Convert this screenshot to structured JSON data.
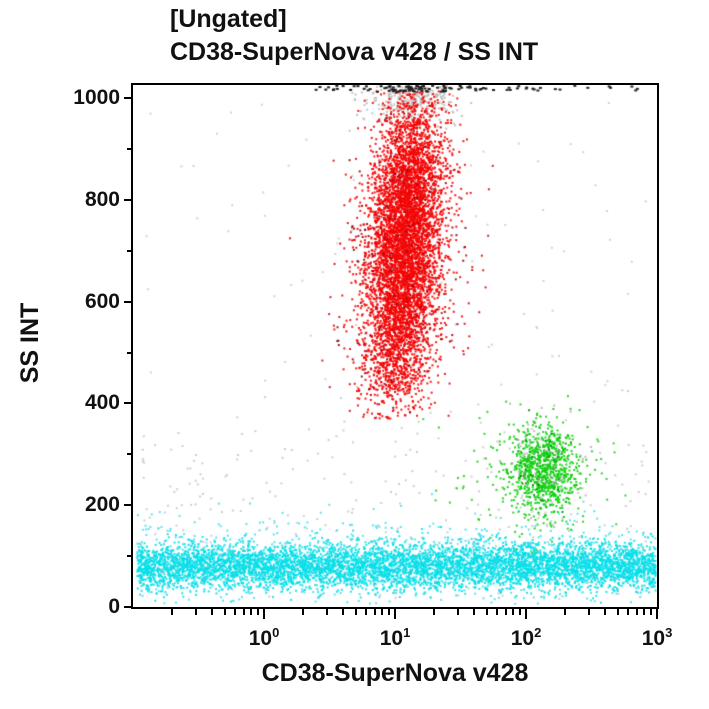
{
  "title": {
    "line1": "[Ungated]",
    "line2": "CD38-SuperNova v428 / SS INT"
  },
  "colors": {
    "background": "#ffffff",
    "axis": "#000000",
    "text": "#111111",
    "granulocytes": "#f50505",
    "monocytes": "#0bd10b",
    "lymphocytes": "#00e1ea",
    "debris": "#c9c9c9",
    "saturated": "#1e1e1e"
  },
  "chart_data": {
    "type": "scatter",
    "subtype": "flow-cytometry-dot-plot",
    "title": "[Ungated]",
    "subtitle": "CD38-SuperNova v428 / SS INT",
    "grid": false,
    "legend": false,
    "x_axis": {
      "label": "CD38-SuperNova v428",
      "scale": "log",
      "range": [
        0.1,
        1000
      ],
      "base": "10",
      "major_tick_exponents": [
        0,
        1,
        2,
        3
      ],
      "minor_tick_multipliers": [
        2,
        3,
        4,
        5,
        6,
        7,
        8,
        9
      ]
    },
    "y_axis": {
      "label": "SS INT",
      "scale": "linear",
      "range": [
        0,
        1025
      ],
      "major_ticks": [
        0,
        200,
        400,
        600,
        800,
        1000
      ],
      "minor_ticks": [
        100,
        300,
        500,
        700,
        900
      ]
    },
    "populations": [
      {
        "name": "debris-gray-low",
        "color": "#c9c9c9",
        "alpha": 0.9,
        "count": 300,
        "w": 2,
        "h": 2,
        "x": {
          "dist": "uniform",
          "min_decade": -0.95,
          "max_decade": 2.97
        },
        "y": {
          "dist": "gauss",
          "mu": 190,
          "sd": 115
        },
        "y_clip": [
          12,
          430
        ]
      },
      {
        "name": "scatter-gray-high",
        "color": "#cdcdcd",
        "alpha": 0.9,
        "count": 80,
        "w": 2,
        "h": 2,
        "x": {
          "dist": "uniform",
          "min_decade": -0.9,
          "max_decade": 2.95
        },
        "y": {
          "dist": "uniform",
          "min": 430,
          "max": 1000
        },
        "y_clip": [
          430,
          1000
        ]
      },
      {
        "name": "saturation-haze-gray",
        "color": "#bdbdbd",
        "alpha": 0.9,
        "count": 270,
        "w": 2,
        "h": 2,
        "x": {
          "dist": "gauss",
          "mu_decade": 1.12,
          "sigma_decade": 0.17
        },
        "y": {
          "dist": "gauss",
          "mu": 1002,
          "sd": 30
        },
        "y_clip": [
          915,
          1024
        ]
      },
      {
        "name": "lymphocytes-cyan-fuzz",
        "color": "#25d8e8",
        "alpha": 0.75,
        "count": 900,
        "w": 2,
        "h": 2,
        "x": {
          "dist": "uniform",
          "min_decade": -0.97,
          "max_decade": 2.99
        },
        "y": {
          "dist": "gauss",
          "mu": 88,
          "sd": 42
        },
        "y_clip": [
          6,
          230
        ]
      },
      {
        "name": "lymphocytes-cyan-core",
        "color": "#00e1ea",
        "color2": "#2cd0e0",
        "color2_p": 0.2,
        "alpha": 0.9,
        "count": 6200,
        "w": 2,
        "h": 2,
        "x": {
          "dist": "uniform",
          "min_decade": -0.97,
          "max_decade": 2.99
        },
        "y": {
          "dist": "gauss",
          "mu": 80,
          "sd": 22
        },
        "y_clip": [
          6,
          185
        ]
      },
      {
        "name": "monocytes-green-outliers",
        "color": "#15c80d",
        "alpha": 0.85,
        "count": 140,
        "w": 2,
        "h": 2,
        "x": {
          "dist": "gauss",
          "mu_decade": 2.06,
          "sigma_decade": 0.27
        },
        "y": {
          "dist": "gauss",
          "mu": 255,
          "sd": 75
        },
        "y_clip": [
          60,
          430
        ]
      },
      {
        "name": "monocytes-green-core",
        "color": "#0bd10b",
        "color2": "#0a8a0a",
        "color2_p": 0.08,
        "alpha": 0.9,
        "count": 850,
        "w": 2,
        "h": 2,
        "x": {
          "dist": "gauss",
          "mu_decade": 2.14,
          "sigma_decade": 0.13
        },
        "y": {
          "dist": "gauss",
          "mu": 268,
          "sd": 42
        },
        "y_clip": [
          125,
          425
        ]
      },
      {
        "name": "monocytes-gray-overlay",
        "color": "#a39aa8",
        "alpha": 0.7,
        "count": 60,
        "w": 2,
        "h": 2,
        "x": {
          "dist": "gauss",
          "mu_decade": 2.12,
          "sigma_decade": 0.15
        },
        "y": {
          "dist": "gauss",
          "mu": 285,
          "sd": 55
        },
        "y_clip": [
          140,
          430
        ]
      },
      {
        "name": "granulocytes-red-outliers",
        "color": "#d90808",
        "color2": "#7d0a14",
        "color2_p": 0.3,
        "alpha": 0.9,
        "count": 380,
        "w": 2,
        "h": 2,
        "x": {
          "dist": "gauss",
          "mu_decade": 1.06,
          "sigma_decade": 0.26
        },
        "y": {
          "dist": "gauss",
          "mu": 700,
          "sd": 165
        },
        "y_clip": [
          375,
          1012
        ],
        "slope_decade_per_ss": 0.00025,
        "slope_ref_ss": 700
      },
      {
        "name": "granulocytes-red-core",
        "color": "#f50505",
        "color2": "#a00010",
        "color2_p": 0.05,
        "alpha": 0.92,
        "count": 6000,
        "w": 2,
        "h": 2,
        "x": {
          "dist": "gauss",
          "mu_decade": 1.07,
          "sigma_decade": 0.14
        },
        "y": {
          "dist": "gauss2",
          "mu1": 590,
          "sd1": 105,
          "p1": 0.45,
          "mu2": 800,
          "sd2": 105
        },
        "y_clip": [
          370,
          1015
        ],
        "slope_decade_per_ss": 0.00025,
        "slope_ref_ss": 700
      },
      {
        "name": "saturated-top-events-center",
        "color": "#1e1e1e",
        "alpha": 1,
        "count": 65,
        "w": 3,
        "h": 2,
        "x": {
          "dist": "gauss",
          "mu_decade": 1.18,
          "sigma_decade": 0.33
        },
        "y": {
          "dist": "uniform",
          "min": 1012,
          "max": 1024
        },
        "y_clip": [
          1010,
          1024
        ]
      },
      {
        "name": "saturated-top-events-spread",
        "color": "#242424",
        "alpha": 1,
        "count": 40,
        "w": 3,
        "h": 2,
        "x": {
          "dist": "uniform",
          "min_decade": 0.2,
          "max_decade": 2.92
        },
        "y": {
          "dist": "uniform",
          "min": 1013,
          "max": 1024
        },
        "y_clip": [
          1010,
          1024
        ]
      }
    ]
  }
}
